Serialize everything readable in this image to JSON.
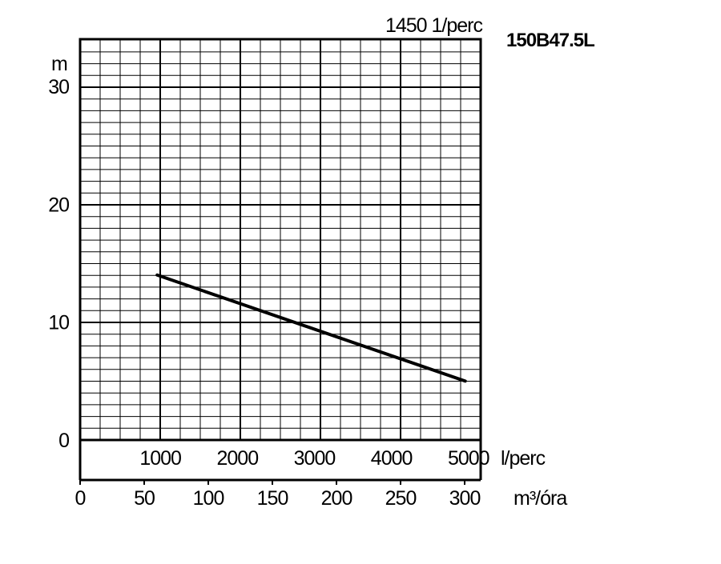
{
  "chart_data": {
    "type": "line",
    "title": "1450 1/perc",
    "model": "150B47.5L",
    "ylabel": "m",
    "x_flow_unit": "l/perc",
    "x_volume_unit": "m³/óra",
    "ylim": [
      0,
      33
    ],
    "xlim": [
      0,
      5200
    ],
    "y_ticks": [
      "0",
      "10",
      "20",
      "30"
    ],
    "x_flow_ticks": [
      "1000",
      "2000",
      "3000",
      "4000",
      "5000"
    ],
    "x_volume_ticks": [
      "0",
      "50",
      "100",
      "150",
      "200",
      "250",
      "300"
    ],
    "grid": true,
    "series": [
      {
        "x": [
          1000,
          5000
        ],
        "y": [
          14,
          5
        ]
      }
    ]
  }
}
